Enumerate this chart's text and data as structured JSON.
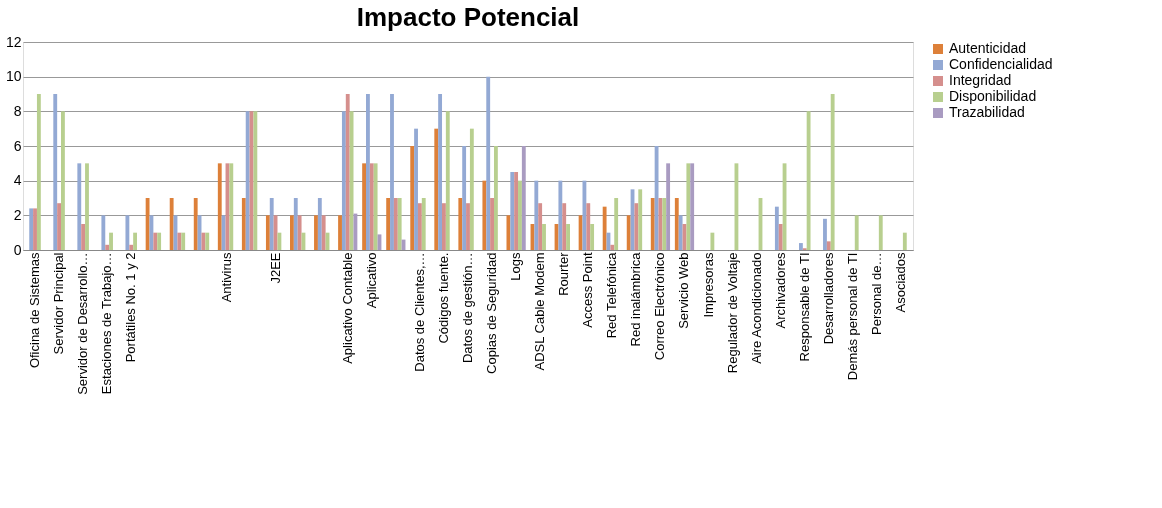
{
  "chart_data": {
    "type": "bar",
    "title": "Impacto Potencial",
    "categories": [
      "Oficina de Sistemas",
      "Servidor Principal",
      "Servidor de Desarrollo…",
      "Estaciones de Trabajo…",
      "Portátiles No. 1 y 2",
      null,
      null,
      null,
      "Antivirus",
      null,
      "J2EE",
      null,
      null,
      "Aplicativo Contable",
      "Aplicativo",
      null,
      "Datos de Clientes,…",
      "Códigos fuente.",
      "Datos de gestión…",
      "Copias de Seguridad",
      "Logs",
      "ADSL Cable Modem",
      "Rourter",
      "Access Point",
      "Red Telefónica",
      "Red inalámbrica",
      "Correo Electrónico",
      "Servicio Web",
      "Impresoras",
      "Regulador de Voltaje",
      "Aire Acondicionado",
      "Archivadores",
      "Responsable de TI",
      "Desarrolladores",
      "Demás personal de TI",
      "Personal de…",
      "Asociados"
    ],
    "series": [
      {
        "name": "Autenticidad",
        "color": "#dd8039",
        "values": [
          null,
          null,
          null,
          null,
          null,
          3,
          3,
          3,
          5,
          3,
          2,
          2,
          2,
          2,
          5,
          3,
          6,
          7,
          3,
          4,
          2,
          1.5,
          1.5,
          2,
          2.5,
          2,
          3,
          3,
          null,
          null,
          null,
          null,
          null,
          null,
          null,
          null,
          null
        ]
      },
      {
        "name": "Confidencialidad",
        "color": "#93a9d4",
        "values": [
          2.4,
          9,
          5,
          2,
          2,
          2,
          2,
          2,
          2,
          8,
          3,
          3,
          3,
          8,
          9,
          9,
          7,
          9,
          6,
          10,
          4.5,
          4,
          4,
          4,
          1,
          3.5,
          6,
          2,
          null,
          null,
          null,
          2.5,
          0.4,
          1.8,
          null,
          null,
          null
        ]
      },
      {
        "name": "Integridad",
        "color": "#d58f8d",
        "values": [
          2.4,
          2.7,
          1.5,
          0.3,
          0.3,
          1,
          1,
          1,
          5,
          8,
          2,
          2,
          2,
          9,
          5,
          3,
          2.7,
          2.7,
          2.7,
          3,
          4.5,
          2.7,
          2.7,
          2.7,
          0.3,
          2.7,
          3,
          1.5,
          null,
          null,
          null,
          1.5,
          0.1,
          0.5,
          null,
          null,
          null
        ]
      },
      {
        "name": "Disponibilidad",
        "color": "#b8cf8f",
        "values": [
          9,
          8,
          5,
          1,
          1,
          1,
          1,
          1,
          5,
          8,
          1,
          1,
          1,
          8,
          5,
          3,
          3,
          8,
          7,
          6,
          4,
          1.5,
          1.5,
          1.5,
          3,
          3.5,
          3,
          5,
          1,
          5,
          3,
          5,
          8,
          9,
          2,
          2,
          1
        ]
      },
      {
        "name": "Trazabilidad",
        "color": "#a99bc1",
        "values": [
          null,
          null,
          null,
          null,
          null,
          null,
          null,
          null,
          null,
          null,
          null,
          null,
          null,
          2.1,
          0.9,
          0.6,
          null,
          null,
          null,
          null,
          6,
          null,
          null,
          null,
          null,
          null,
          5,
          5,
          null,
          null,
          null,
          null,
          null,
          null,
          null,
          null,
          null
        ]
      }
    ],
    "ylim": [
      0,
      12
    ],
    "yticks": [
      0,
      2,
      4,
      6,
      8,
      10,
      12
    ],
    "grid": "y",
    "legend": "right"
  }
}
